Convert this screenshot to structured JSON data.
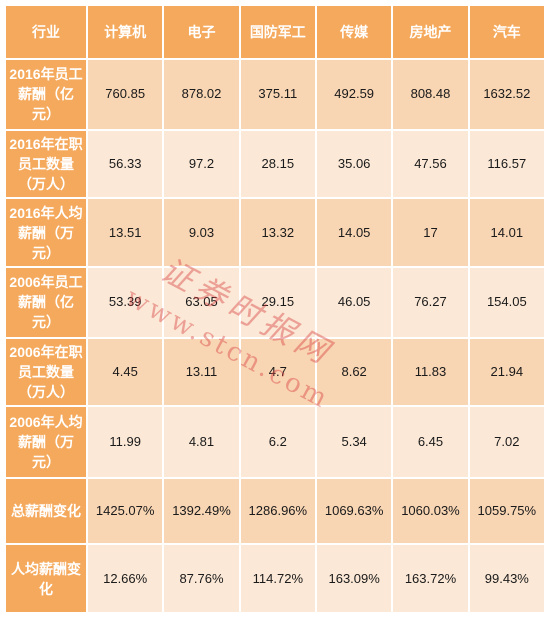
{
  "table": {
    "header": [
      "行业",
      "计算机",
      "电子",
      "国防军工",
      "传媒",
      "房地产",
      "汽车"
    ],
    "rows": [
      {
        "label": "2016年员工薪酬（亿元）",
        "values": [
          "760.85",
          "878.02",
          "375.11",
          "492.59",
          "808.48",
          "1632.52"
        ]
      },
      {
        "label": "2016年在职员工数量（万人）",
        "values": [
          "56.33",
          "97.2",
          "28.15",
          "35.06",
          "47.56",
          "116.57"
        ]
      },
      {
        "label": "2016年人均薪酬（万元）",
        "values": [
          "13.51",
          "9.03",
          "13.32",
          "14.05",
          "17",
          "14.01"
        ]
      },
      {
        "label": "2006年员工薪酬（亿元）",
        "values": [
          "53.39",
          "63.05",
          "29.15",
          "46.05",
          "76.27",
          "154.05"
        ]
      },
      {
        "label": "2006年在职员工数量（万人）",
        "values": [
          "4.45",
          "13.11",
          "4.7",
          "8.62",
          "11.83",
          "21.94"
        ]
      },
      {
        "label": "2006年人均薪酬（万元）",
        "values": [
          "11.99",
          "4.81",
          "6.2",
          "5.34",
          "6.45",
          "7.02"
        ]
      },
      {
        "label": "总薪酬变化",
        "values": [
          "1425.07%",
          "1392.49%",
          "1286.96%",
          "1069.63%",
          "1060.03%",
          "1059.75%"
        ]
      },
      {
        "label": "人均薪酬变化",
        "values": [
          "12.66%",
          "87.76%",
          "114.72%",
          "163.09%",
          "163.72%",
          "99.43%"
        ]
      }
    ]
  },
  "watermark": {
    "cn": "证券时报网",
    "url": "www.stcn.com",
    "color": "#d63c3c"
  },
  "colors": {
    "header_bg": "#f5a95c",
    "row_dark": "#f8d5b3",
    "row_light": "#fbe8d6"
  }
}
